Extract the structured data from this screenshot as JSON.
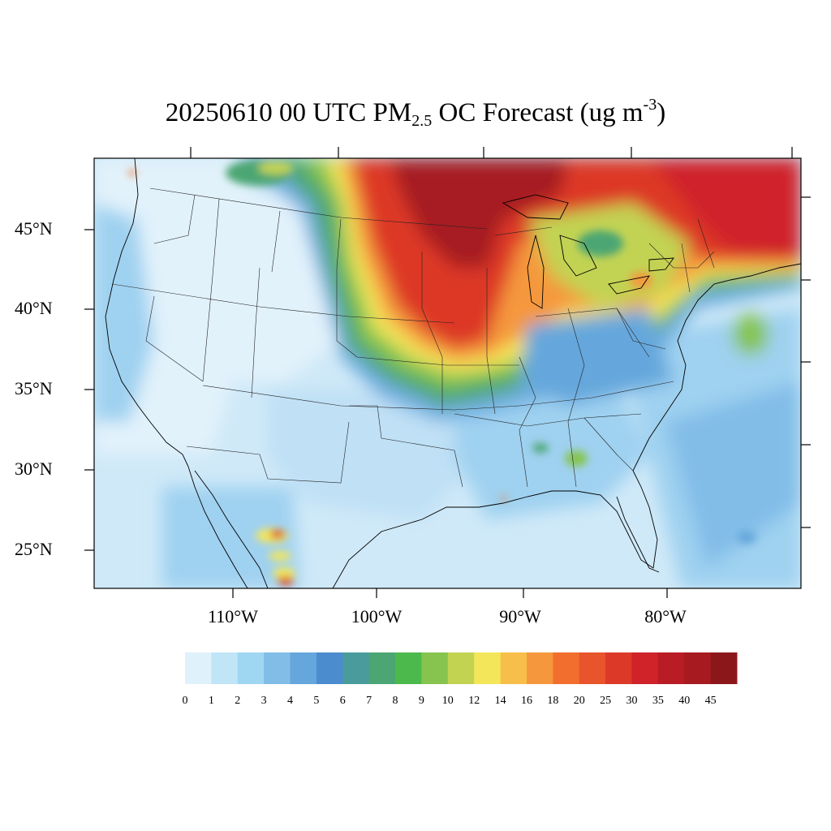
{
  "title": {
    "prefix": "20250610 00 UTC PM",
    "subscript": "2.5",
    "middle": " OC Forecast (ug m",
    "superscript": "-3",
    "suffix": ")"
  },
  "axes": {
    "lat_labels": [
      "45°N",
      "40°N",
      "35°N",
      "30°N",
      "25°N"
    ],
    "lon_labels": [
      "110°W",
      "100°W",
      "90°W",
      "80°W"
    ]
  },
  "colorbar": {
    "labels": [
      "0",
      "1",
      "2",
      "3",
      "4",
      "5",
      "6",
      "7",
      "8",
      "9",
      "10",
      "12",
      "14",
      "16",
      "18",
      "20",
      "25",
      "30",
      "35",
      "40",
      "45"
    ],
    "colors": [
      "#dff1fb",
      "#bfe5f7",
      "#9fd6f2",
      "#82bde8",
      "#65a7dc",
      "#4b8cce",
      "#4a9c9c",
      "#4ca673",
      "#4cb94c",
      "#86c44f",
      "#c2d352",
      "#f4e65a",
      "#f7bf4a",
      "#f5983d",
      "#f26e2e",
      "#e8542b",
      "#dd3928",
      "#cf2229",
      "#b91c24",
      "#a61a20",
      "#8c171b"
    ]
  },
  "map": {
    "projection": "Lambert Conformal",
    "features": [
      "US state boundaries",
      "coastlines",
      "Canada/Mexico borders"
    ],
    "field_colors": {
      "background": "#cfe9f8",
      "light": "#e2f2fb",
      "medium_blue": "#9fd1f0",
      "blue": "#6faee0",
      "green": "#4cb94c",
      "yellow": "#f4e65a",
      "orange": "#f5983d",
      "red": "#dd3928",
      "dark_red": "#a61a20"
    }
  }
}
